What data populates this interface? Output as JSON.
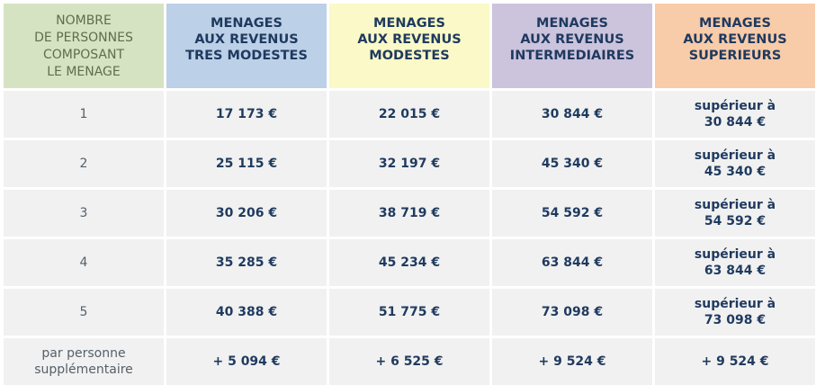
{
  "table": {
    "header": {
      "first": "NOMBRE\nDE PERSONNES\nCOMPOSANT\nLE MENAGE",
      "columns": [
        "MENAGES\nAUX REVENUS\nTRES MODESTES",
        "MENAGES\nAUX REVENUS\nMODESTES",
        "MENAGES\nAUX REVENUS\nINTERMEDIAIRES",
        "MENAGES\nAUX REVENUS\nSUPERIEURS"
      ]
    },
    "colors": {
      "first_header": "#d6e3c3",
      "tres_modestes": "#bcd0e7",
      "modestes": "#fbf9c7",
      "intermediaires": "#ccc3dd",
      "superieurs": "#f8cba9",
      "row_background": "#f1f1f1",
      "value_text": "#1f3a5f"
    },
    "rows": [
      {
        "label": "1",
        "values": [
          "17 173 €",
          "22 015 €",
          "30 844 €",
          "supérieur à\n30 844 €"
        ]
      },
      {
        "label": "2",
        "values": [
          "25 115 €",
          "32 197 €",
          "45 340 €",
          "supérieur à\n45 340 €"
        ]
      },
      {
        "label": "3",
        "values": [
          "30 206 €",
          "38 719 €",
          "54 592 €",
          "supérieur à\n54 592 €"
        ]
      },
      {
        "label": "4",
        "values": [
          "35 285 €",
          "45 234 €",
          "63 844 €",
          "supérieur à\n63 844 €"
        ]
      },
      {
        "label": "5",
        "values": [
          "40 388 €",
          "51 775 €",
          "73 098 €",
          "supérieur à\n73 098 €"
        ]
      },
      {
        "label": "par personne\nsupplémentaire",
        "values": [
          "+ 5 094 €",
          "+ 6 525 €",
          "+ 9 524 €",
          "+ 9 524 €"
        ]
      }
    ]
  }
}
